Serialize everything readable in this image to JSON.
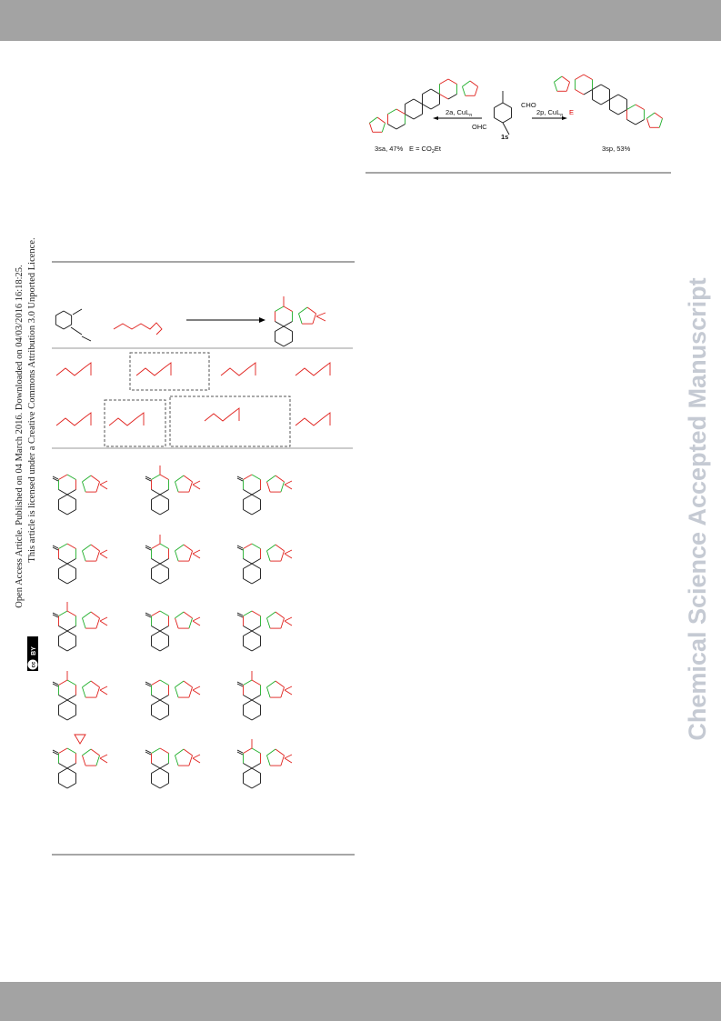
{
  "license": {
    "line1": "Open Access Article. Published on 04 March 2016. Downloaded on 04/03/2016 16:18:25.",
    "line2": "This article is licensed under a Creative Commons Attribution 3.0 Unported Licence.",
    "badge_cc": "cc",
    "badge_by": "BY"
  },
  "watermark": "Chemical Science Accepted Manuscript",
  "scheme": {
    "left_arrow": {
      "text": "2a, CuL",
      "sub": "n"
    },
    "right_arrow": {
      "text": "2p, CuL",
      "sub": "n"
    },
    "substrate_ohc": "OHC",
    "substrate_cho": "CHO",
    "substrate_label": "1s",
    "left_product": "3sa, 47%",
    "e_definition": {
      "prefix": "E = CO",
      "sub": "2",
      "suffix": "Et"
    },
    "right_product": "3sp, 53%",
    "ester_symbol": "E"
  }
}
